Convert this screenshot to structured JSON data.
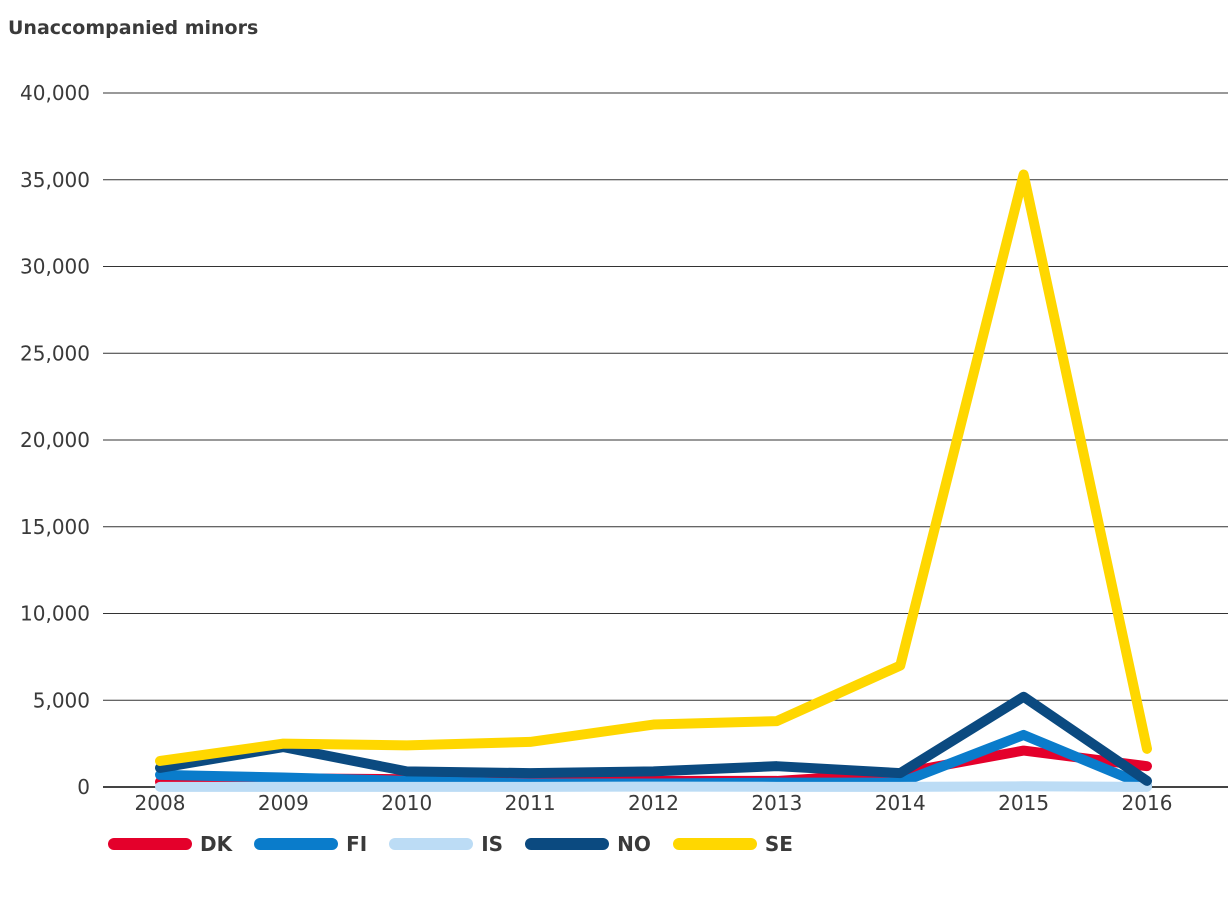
{
  "chart_data": {
    "type": "line",
    "title": "Unaccompanied minors",
    "xlabel": "",
    "ylabel": "",
    "x": [
      "2008",
      "2009",
      "2010",
      "2011",
      "2012",
      "2013",
      "2014",
      "2015",
      "2016"
    ],
    "ylim": [
      0,
      40000
    ],
    "yticks": [
      0,
      5000,
      10000,
      15000,
      20000,
      25000,
      30000,
      35000,
      40000
    ],
    "ytick_labels": [
      "0",
      "5,000",
      "10,000",
      "15,000",
      "20,000",
      "25,000",
      "30,000",
      "35,000",
      "40,000"
    ],
    "grid": "horizontal",
    "legend_position": "bottom",
    "series": [
      {
        "name": "DK",
        "color": "#e4002b",
        "values": [
          300,
          500,
          450,
          400,
          350,
          350,
          800,
          2100,
          1200
        ]
      },
      {
        "name": "FI",
        "color": "#0a7ccb",
        "values": [
          700,
          550,
          350,
          200,
          200,
          250,
          250,
          3000,
          50
        ]
      },
      {
        "name": "IS",
        "color": "#bcdcf5",
        "values": [
          10,
          10,
          10,
          10,
          20,
          10,
          10,
          40,
          10
        ]
      },
      {
        "name": "NO",
        "color": "#0b4a80",
        "values": [
          1100,
          2300,
          900,
          800,
          900,
          1200,
          800,
          5200,
          350
        ]
      },
      {
        "name": "SE",
        "color": "#ffd700",
        "values": [
          1500,
          2500,
          2400,
          2600,
          3600,
          3800,
          7000,
          35300,
          2200
        ]
      }
    ]
  }
}
